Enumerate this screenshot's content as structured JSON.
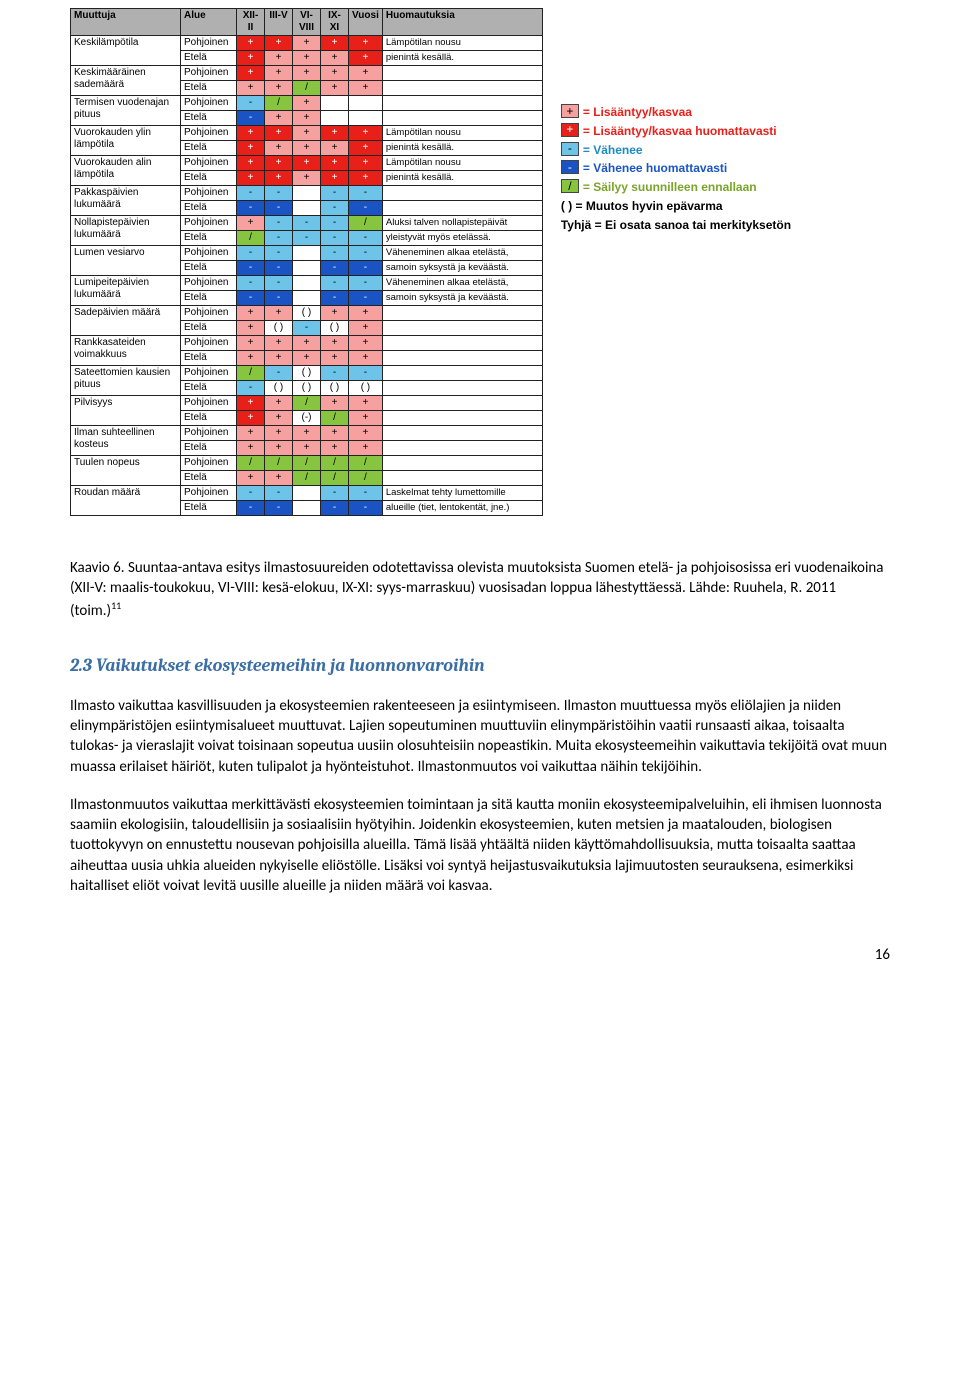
{
  "colors": {
    "pink": "#f6a0a0",
    "red": "#e8201a",
    "lightblue": "#6ec3e8",
    "blue": "#1a54c4",
    "green": "#87c540",
    "header": "#b0b0b0"
  },
  "legend": [
    {
      "swatch_bg": "#f6a0a0",
      "swatch_text": "+",
      "label": "= Lisääntyy/kasvaa",
      "color": "#e8201a"
    },
    {
      "swatch_bg": "#e8201a",
      "swatch_text": "+",
      "label": "= Lisääntyy/kasvaa huomattavasti",
      "color": "#e8201a"
    },
    {
      "swatch_bg": "#6ec3e8",
      "swatch_text": "-",
      "label": "= Vähenee",
      "color": "#1a8bc4"
    },
    {
      "swatch_bg": "#1a54c4",
      "swatch_text": "-",
      "label": "= Vähenee huomattavasti",
      "color": "#1a54c4"
    },
    {
      "swatch_bg": "#87c540",
      "swatch_text": "/",
      "label": "= Säilyy suunnilleen ennallaan",
      "color": "#7aa52a"
    }
  ],
  "legend_extra1": "( ) = Muutos hyvin epävarma",
  "legend_extra2": "Tyhjä = Ei osata sanoa tai merkityksetön",
  "headers": [
    "Muuttuja",
    "Alue",
    "XII-II",
    "III-V",
    "VI-VIII",
    "IX-XI",
    "Vuosi",
    "Huomautuksia"
  ],
  "rows": [
    {
      "m": "Keskilämpötila",
      "a": [
        "Pohjoinen",
        "Etelä"
      ],
      "v": [
        [
          "+",
          "+",
          "+",
          "+",
          "+"
        ],
        [
          "+",
          "+",
          "+",
          "+",
          "+"
        ]
      ],
      "c": [
        [
          "red",
          "red",
          "pink",
          "red",
          "red"
        ],
        [
          "red",
          "pink",
          "pink",
          "pink",
          "red"
        ]
      ],
      "n": [
        "Lämpötilan nousu",
        "pienintä kesällä."
      ]
    },
    {
      "m": "Keskimääräinen sademäärä",
      "a": [
        "Pohjoinen",
        "Etelä"
      ],
      "v": [
        [
          "+",
          "+",
          "+",
          "+",
          "+"
        ],
        [
          "+",
          "+",
          "/",
          "+",
          "+"
        ]
      ],
      "c": [
        [
          "red",
          "pink",
          "pink",
          "pink",
          "pink"
        ],
        [
          "pink",
          "pink",
          "green",
          "pink",
          "pink"
        ]
      ],
      "n": [
        "",
        ""
      ]
    },
    {
      "m": "Termisen vuodenajan pituus",
      "a": [
        "Pohjoinen",
        "Etelä"
      ],
      "v": [
        [
          "-",
          "/",
          "+",
          "",
          ""
        ],
        [
          "-",
          "+",
          "+",
          "",
          ""
        ]
      ],
      "c": [
        [
          "lightblue",
          "green",
          "pink",
          "",
          ""
        ],
        [
          "blue",
          "pink",
          "pink",
          "",
          ""
        ]
      ],
      "n": [
        "",
        ""
      ]
    },
    {
      "m": "Vuorokauden ylin lämpötila",
      "a": [
        "Pohjoinen",
        "Etelä"
      ],
      "v": [
        [
          "+",
          "+",
          "+",
          "+",
          "+"
        ],
        [
          "+",
          "+",
          "+",
          "+",
          "+"
        ]
      ],
      "c": [
        [
          "red",
          "red",
          "pink",
          "red",
          "red"
        ],
        [
          "red",
          "pink",
          "pink",
          "pink",
          "red"
        ]
      ],
      "n": [
        "Lämpötilan nousu",
        "pienintä kesällä."
      ]
    },
    {
      "m": "Vuorokauden alin lämpötila",
      "a": [
        "Pohjoinen",
        "Etelä"
      ],
      "v": [
        [
          "+",
          "+",
          "+",
          "+",
          "+"
        ],
        [
          "+",
          "+",
          "+",
          "+",
          "+"
        ]
      ],
      "c": [
        [
          "red",
          "red",
          "red",
          "red",
          "red"
        ],
        [
          "red",
          "red",
          "pink",
          "red",
          "red"
        ]
      ],
      "n": [
        "Lämpötilan nousu",
        "pienintä kesällä."
      ]
    },
    {
      "m": "Pakkaspäivien lukumäärä",
      "a": [
        "Pohjoinen",
        "Etelä"
      ],
      "v": [
        [
          "-",
          "-",
          "",
          "-",
          "-"
        ],
        [
          "-",
          "-",
          "",
          "-",
          "-"
        ]
      ],
      "c": [
        [
          "lightblue",
          "lightblue",
          "",
          "lightblue",
          "lightblue"
        ],
        [
          "blue",
          "blue",
          "",
          "lightblue",
          "blue"
        ]
      ],
      "n": [
        "",
        ""
      ]
    },
    {
      "m": "Nollapistepäivien lukumäärä",
      "a": [
        "Pohjoinen",
        "Etelä"
      ],
      "v": [
        [
          "+",
          "-",
          "-",
          "-",
          "/"
        ],
        [
          "/",
          "-",
          "-",
          "-",
          "-"
        ]
      ],
      "c": [
        [
          "pink",
          "lightblue",
          "lightblue",
          "lightblue",
          "green"
        ],
        [
          "green",
          "lightblue",
          "lightblue",
          "lightblue",
          "lightblue"
        ]
      ],
      "n": [
        "Aluksi talven nollapistepäivät",
        "yleistyvät myös etelässä."
      ]
    },
    {
      "m": "Lumen vesiarvo",
      "a": [
        "Pohjoinen",
        "Etelä"
      ],
      "v": [
        [
          "-",
          "-",
          "",
          "-",
          "-"
        ],
        [
          "-",
          "-",
          "",
          "-",
          "-"
        ]
      ],
      "c": [
        [
          "lightblue",
          "lightblue",
          "",
          "lightblue",
          "lightblue"
        ],
        [
          "blue",
          "blue",
          "",
          "blue",
          "blue"
        ]
      ],
      "n": [
        "Väheneminen alkaa etelästä,",
        "samoin syksystä ja keväästä."
      ]
    },
    {
      "m": "Lumipeitepäivien lukumäärä",
      "a": [
        "Pohjoinen",
        "Etelä"
      ],
      "v": [
        [
          "-",
          "-",
          "",
          "-",
          "-"
        ],
        [
          "-",
          "-",
          "",
          "-",
          "-"
        ]
      ],
      "c": [
        [
          "lightblue",
          "lightblue",
          "",
          "lightblue",
          "lightblue"
        ],
        [
          "blue",
          "blue",
          "",
          "blue",
          "blue"
        ]
      ],
      "n": [
        "Väheneminen alkaa etelästä,",
        "samoin syksystä ja keväästä."
      ]
    },
    {
      "m": "Sadepäivien määrä",
      "a": [
        "Pohjoinen",
        "Etelä"
      ],
      "v": [
        [
          "+",
          "+",
          "( )",
          "+",
          "+"
        ],
        [
          "+",
          "( )",
          "-",
          "( )",
          "+"
        ]
      ],
      "c": [
        [
          "pink",
          "pink",
          "",
          "pink",
          "pink"
        ],
        [
          "pink",
          "",
          "lightblue",
          "",
          "pink"
        ]
      ],
      "n": [
        "",
        ""
      ]
    },
    {
      "m": "Rankkasateiden voimakkuus",
      "a": [
        "Pohjoinen",
        "Etelä"
      ],
      "v": [
        [
          "+",
          "+",
          "+",
          "+",
          "+"
        ],
        [
          "+",
          "+",
          "+",
          "+",
          "+"
        ]
      ],
      "c": [
        [
          "pink",
          "pink",
          "pink",
          "pink",
          "pink"
        ],
        [
          "pink",
          "pink",
          "pink",
          "pink",
          "pink"
        ]
      ],
      "n": [
        "",
        ""
      ]
    },
    {
      "m": "Sateettomien kausien pituus",
      "a": [
        "Pohjoinen",
        "Etelä"
      ],
      "v": [
        [
          "/",
          "-",
          "( )",
          "-",
          "-"
        ],
        [
          "-",
          "( )",
          "( )",
          "( )",
          "( )"
        ]
      ],
      "c": [
        [
          "green",
          "lightblue",
          "",
          "lightblue",
          "lightblue"
        ],
        [
          "lightblue",
          "",
          "",
          "",
          ""
        ]
      ],
      "n": [
        "",
        ""
      ]
    },
    {
      "m": "Pilvisyys",
      "a": [
        "Pohjoinen",
        "Etelä"
      ],
      "v": [
        [
          "+",
          "+",
          "/",
          "+",
          "+"
        ],
        [
          "+",
          "+",
          "(-)",
          "/",
          "+"
        ]
      ],
      "c": [
        [
          "red",
          "pink",
          "green",
          "pink",
          "pink"
        ],
        [
          "red",
          "pink",
          "",
          "green",
          "pink"
        ]
      ],
      "n": [
        "",
        ""
      ]
    },
    {
      "m": "Ilman suhteellinen kosteus",
      "a": [
        "Pohjoinen",
        "Etelä"
      ],
      "v": [
        [
          "+",
          "+",
          "+",
          "+",
          "+"
        ],
        [
          "+",
          "+",
          "+",
          "+",
          "+"
        ]
      ],
      "c": [
        [
          "pink",
          "pink",
          "pink",
          "pink",
          "pink"
        ],
        [
          "pink",
          "pink",
          "pink",
          "pink",
          "pink"
        ]
      ],
      "n": [
        "",
        ""
      ]
    },
    {
      "m": "Tuulen nopeus",
      "a": [
        "Pohjoinen",
        "Etelä"
      ],
      "v": [
        [
          "/",
          "/",
          "/",
          "/",
          "/"
        ],
        [
          "+",
          "+",
          "/",
          "/",
          "/"
        ]
      ],
      "c": [
        [
          "green",
          "green",
          "green",
          "green",
          "green"
        ],
        [
          "pink",
          "pink",
          "green",
          "green",
          "green"
        ]
      ],
      "n": [
        "",
        ""
      ]
    },
    {
      "m": "Roudan määrä",
      "a": [
        "Pohjoinen",
        "Etelä"
      ],
      "v": [
        [
          "-",
          "-",
          "",
          "-",
          "-"
        ],
        [
          "-",
          "-",
          "",
          "-",
          "-"
        ]
      ],
      "c": [
        [
          "lightblue",
          "lightblue",
          "",
          "lightblue",
          "lightblue"
        ],
        [
          "blue",
          "blue",
          "",
          "blue",
          "blue"
        ]
      ],
      "n": [
        "Laskelmat tehty lumettomille",
        "alueille (tiet, lentokentät, jne.)"
      ]
    }
  ],
  "caption": "Kaavio 6. Suuntaa-antava esitys ilmastosuureiden odotettavissa olevista muutoksista Suomen etelä- ja pohjoisosissa eri vuodenaikoina (XII-V: maalis-toukokuu, VI-VIII: kesä-elokuu, IX-XI: syys-marraskuu) vuosisadan loppua lähestyttäessä. Lähde: Ruuhela, R. 2011 (toim.)",
  "caption_sup": "11",
  "heading": "2.3 Vaikutukset ekosysteemeihin ja luonnonvaroihin",
  "para1": "Ilmasto vaikuttaa kasvillisuuden ja ekosysteemien rakenteeseen ja esiintymiseen. Ilmaston muuttuessa myös eliölajien ja niiden elinympäristöjen esiintymisalueet muuttuvat. Lajien sopeutuminen muuttuviin elinympäristöihin vaatii runsaasti aikaa, toisaalta tulokas- ja vieraslajit voivat toisinaan sopeutua uusiin olosuhteisiin nopeastikin. Muita ekosysteemeihin vaikuttavia tekijöitä ovat muun muassa erilaiset häiriöt, kuten tulipalot ja hyönteistuhot. Ilmastonmuutos voi vaikuttaa näihin tekijöihin.",
  "para2": "Ilmastonmuutos vaikuttaa merkittävästi ekosysteemien toimintaan ja sitä kautta moniin ekosysteemipalveluihin, eli ihmisen luonnosta saamiin ekologisiin, taloudellisiin ja sosiaalisiin hyötyihin. Joidenkin ekosysteemien, kuten metsien ja maatalouden, biologisen tuottokyvyn on ennustettu nousevan pohjoisilla alueilla. Tämä lisää yhtäältä niiden käyttömahdollisuuksia, mutta toisaalta saattaa aiheuttaa uusia uhkia alueiden nykyiselle eliöstölle. Lisäksi voi syntyä heijastusvaikutuksia lajimuutosten seurauksena, esimerkiksi haitalliset eliöt voivat levitä uusille alueille ja niiden määrä voi kasvaa.",
  "page_num": "16"
}
